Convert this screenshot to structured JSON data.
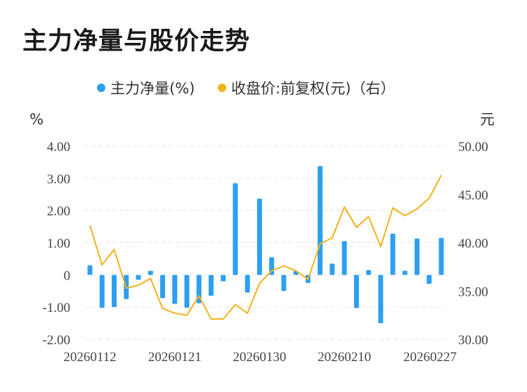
{
  "title": "主力净量与股价走势",
  "legend": {
    "bar_label": "主力净量(%)",
    "line_label": "收盘价:前复权(元)（右）"
  },
  "colors": {
    "bar": "#2e9ff0",
    "line": "#f2b21c",
    "grid": "#e6e6e6"
  },
  "chart_data": {
    "type": "bar+line",
    "left_unit": "%",
    "right_unit": "元",
    "left_ylim": [
      -2,
      4
    ],
    "right_ylim": [
      30,
      50
    ],
    "left_ticks": [
      "4.00",
      "3.00",
      "2.00",
      "1.00",
      "0",
      "-1.00",
      "-2.00"
    ],
    "right_ticks": [
      "50.00",
      "45.00",
      "40.00",
      "35.00",
      "30.00"
    ],
    "x_tick_labels": [
      "20260112",
      "20260121",
      "20260130",
      "20260210",
      "20260227"
    ],
    "x_tick_indices": [
      0,
      7,
      14,
      21,
      29
    ],
    "grid": true,
    "legend_position": "top-center",
    "series": [
      {
        "name": "主力净量(%)",
        "type": "bar",
        "values": [
          0.3,
          -1.02,
          -1.0,
          -0.75,
          -0.15,
          0.13,
          -0.72,
          -0.9,
          -1.02,
          -0.88,
          -0.65,
          -0.2,
          2.85,
          -0.55,
          2.37,
          0.55,
          -0.5,
          0.12,
          -0.25,
          3.38,
          0.35,
          1.05,
          -1.03,
          0.15,
          -1.5,
          1.28,
          0.13,
          1.13,
          -0.28,
          1.15
        ]
      },
      {
        "name": "收盘价:前复权(元)（右）",
        "type": "line",
        "values": [
          41.8,
          37.7,
          39.3,
          35.3,
          35.6,
          36.3,
          33.2,
          32.7,
          32.5,
          34.5,
          32.1,
          32.1,
          33.6,
          32.7,
          35.8,
          37.1,
          37.6,
          37.1,
          36.2,
          39.9,
          40.5,
          43.7,
          41.6,
          42.7,
          39.6,
          43.6,
          42.8,
          43.5,
          44.6,
          47.0
        ]
      }
    ]
  }
}
